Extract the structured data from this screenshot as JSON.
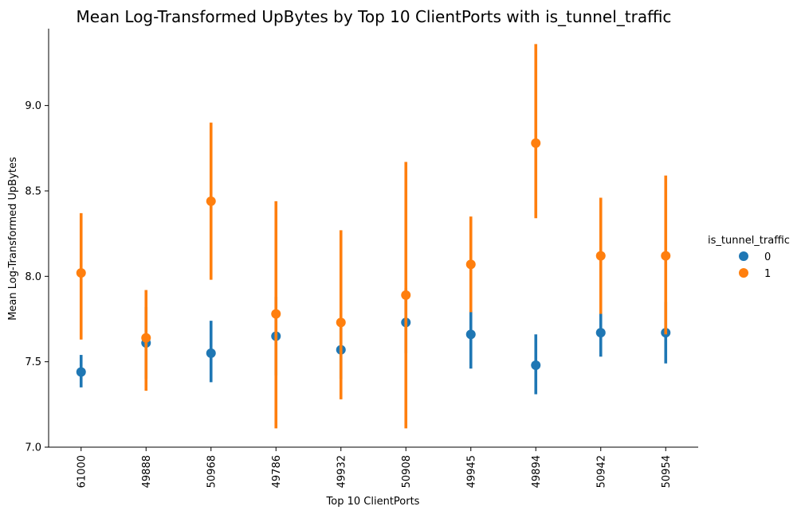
{
  "chart_data": {
    "type": "pointplot",
    "title": "Mean Log-Transformed UpBytes by Top 10 ClientPorts with is_tunnel_traffic",
    "xlabel": "Top 10 ClientPorts",
    "ylabel": "Mean Log-Transformed UpBytes",
    "categories": [
      "61000",
      "49888",
      "50968",
      "49786",
      "49932",
      "50908",
      "49945",
      "49894",
      "50942",
      "50954"
    ],
    "ylim": [
      7.0,
      9.45
    ],
    "yticks": [
      "7.0",
      "7.5",
      "8.0",
      "8.5",
      "9.0"
    ],
    "grid": false,
    "legend": {
      "title": "is_tunnel_traffic",
      "placement": "right"
    },
    "series": [
      {
        "name": "0",
        "color": "#1f77b4",
        "values": [
          7.44,
          7.61,
          7.55,
          7.65,
          7.57,
          7.73,
          7.66,
          7.48,
          7.67,
          7.67
        ],
        "ci_low": [
          7.35,
          7.4,
          7.38,
          7.42,
          7.4,
          7.55,
          7.46,
          7.31,
          7.53,
          7.49
        ],
        "ci_high": [
          7.54,
          7.82,
          7.74,
          7.88,
          7.75,
          7.93,
          7.8,
          7.66,
          7.78,
          7.85
        ]
      },
      {
        "name": "1",
        "color": "#ff7f0e",
        "values": [
          8.02,
          7.64,
          8.44,
          7.78,
          7.73,
          7.89,
          8.07,
          8.78,
          8.12,
          8.12
        ],
        "ci_low": [
          7.63,
          7.33,
          7.98,
          7.11,
          7.28,
          7.11,
          7.79,
          8.34,
          7.78,
          7.66
        ],
        "ci_high": [
          8.37,
          7.92,
          8.9,
          8.44,
          8.27,
          8.67,
          8.35,
          9.36,
          8.46,
          8.59
        ]
      }
    ]
  }
}
